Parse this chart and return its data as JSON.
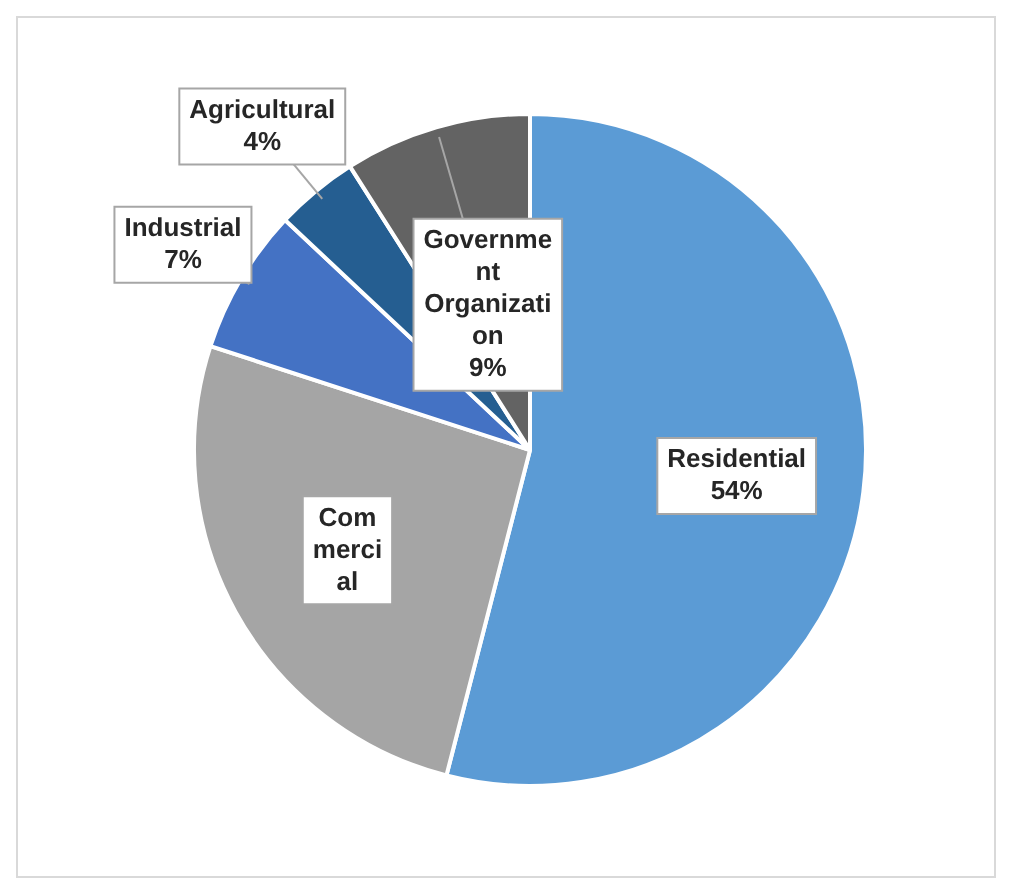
{
  "chart_data": {
    "type": "pie",
    "categories": [
      "Residential",
      "Commercial",
      "Industrial",
      "Agricultural",
      "Government Organization"
    ],
    "values": [
      54,
      26,
      7,
      4,
      9
    ],
    "colors": [
      "#5b9bd5",
      "#a5a5a5",
      "#4472c4",
      "#255e91",
      "#636363"
    ],
    "value_labels": [
      "54%",
      null,
      "7%",
      "4%",
      "9%"
    ],
    "legend": false
  }
}
